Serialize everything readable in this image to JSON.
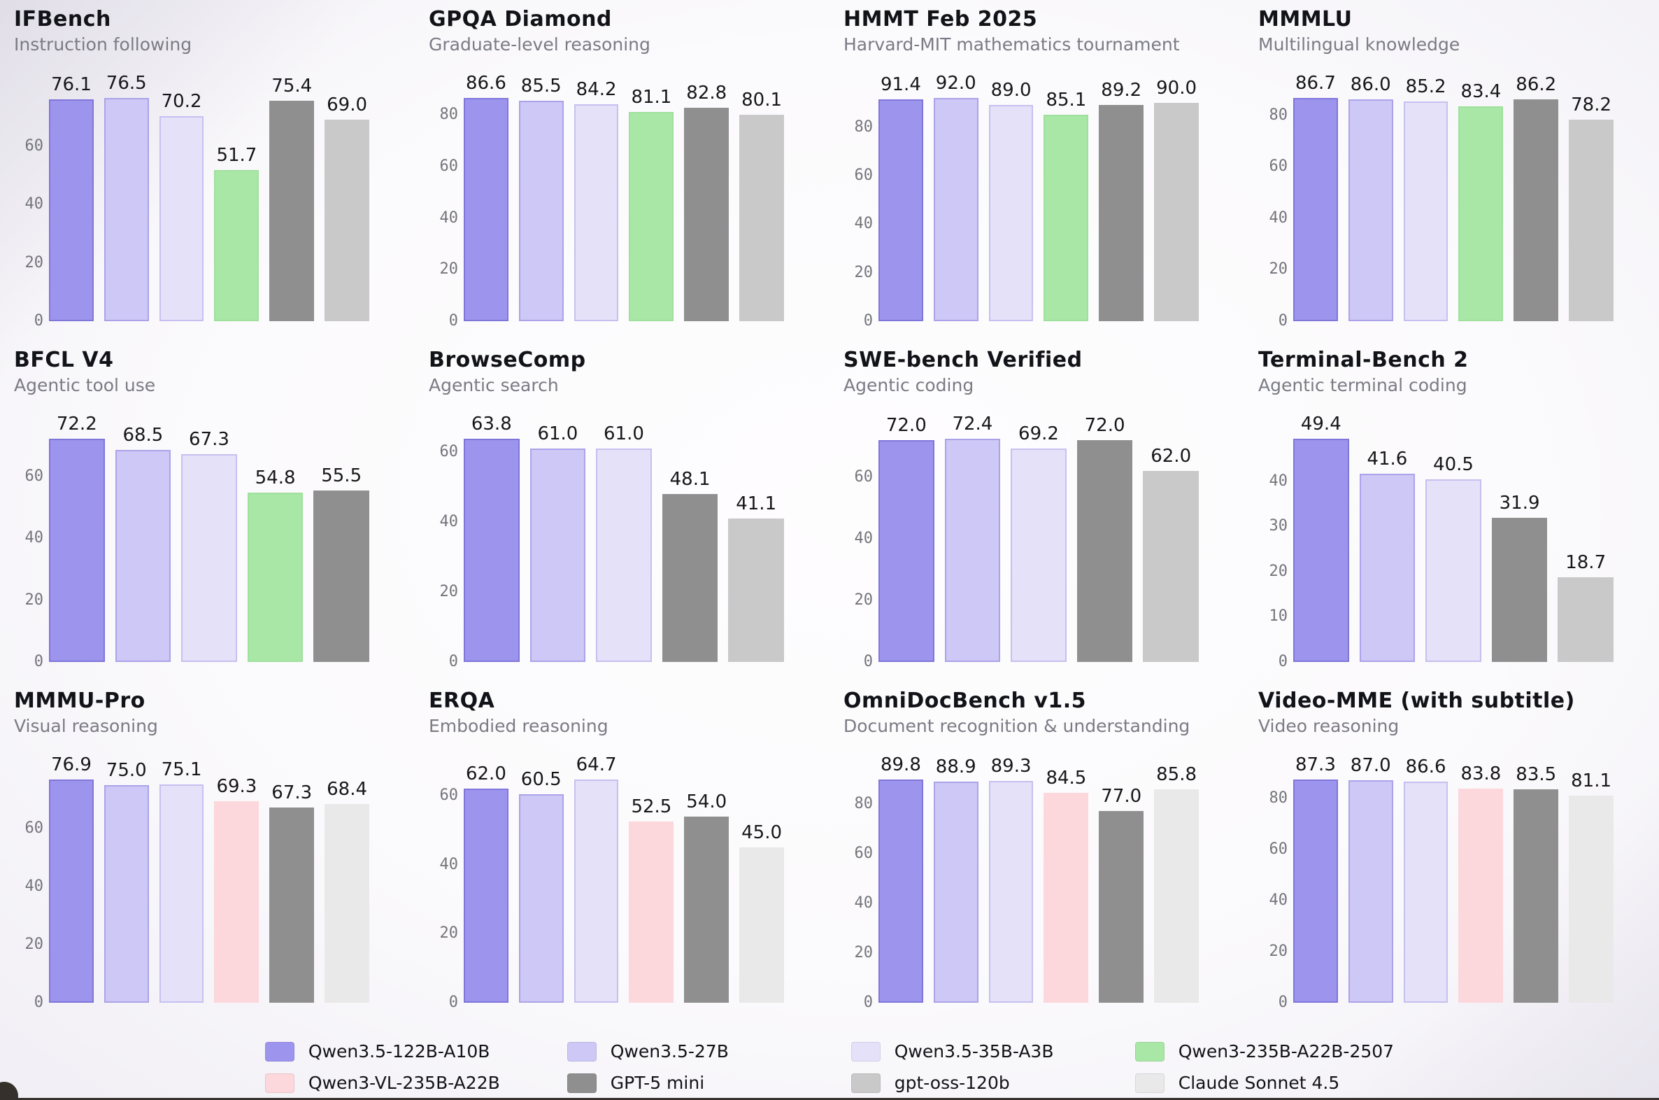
{
  "page": {
    "background": "#faf9fc",
    "bottom_edge_color": "#35302b"
  },
  "models": [
    {
      "name": "Qwen3.5-122B-A10B",
      "fill": "#9d95ed",
      "edge": "#7f76da"
    },
    {
      "name": "Qwen3.5-27B",
      "fill": "#cdc8f5",
      "edge": "#aba3e9"
    },
    {
      "name": "Qwen3.5-35B-A3B",
      "fill": "#e4e1f9",
      "edge": "#c6c0f0"
    },
    {
      "name": "Qwen3-235B-A22B-2507",
      "fill": "#a9e7a6",
      "edge": "#a0e09d"
    },
    {
      "name": "Qwen3-VL-235B-A22B",
      "fill": "#fcd7dc",
      "edge": "#fcd7dc"
    },
    {
      "name": "GPT-5 mini",
      "fill": "#8f8f8f",
      "edge": "#8f8f8f"
    },
    {
      "name": "gpt-oss-120b",
      "fill": "#c9c9c9",
      "edge": "#c9c9c9"
    },
    {
      "name": "Claude Sonnet 4.5",
      "fill": "#e9e9e9",
      "edge": "#e9e9e9"
    }
  ],
  "legend": {
    "rows": [
      [
        "Qwen3.5-122B-A10B",
        "Qwen3.5-27B",
        "Qwen3.5-35B-A3B",
        "Qwen3-235B-A22B-2507"
      ],
      [
        "Qwen3-VL-235B-A22B",
        "GPT-5 mini",
        "gpt-oss-120b",
        "Claude Sonnet 4.5"
      ]
    ]
  },
  "chart_data": [
    {
      "type": "bar",
      "title": "IFBench",
      "subtitle": "Instruction following",
      "categories": [
        "Qwen3.5-122B-A10B",
        "Qwen3.5-27B",
        "Qwen3.5-35B-A3B",
        "Qwen3-235B-A22B-2507",
        "GPT-5 mini",
        "gpt-oss-120b"
      ],
      "values": [
        76.1,
        76.5,
        70.2,
        51.7,
        75.4,
        69.0
      ],
      "yticks": [
        0,
        20,
        40,
        60
      ],
      "ylim": [
        0,
        80.3
      ]
    },
    {
      "type": "bar",
      "title": "GPQA Diamond",
      "subtitle": "Graduate-level reasoning",
      "categories": [
        "Qwen3.5-122B-A10B",
        "Qwen3.5-27B",
        "Qwen3.5-35B-A3B",
        "Qwen3-235B-A22B-2507",
        "GPT-5 mini",
        "gpt-oss-120b"
      ],
      "values": [
        86.6,
        85.5,
        84.2,
        81.1,
        82.8,
        80.1
      ],
      "yticks": [
        0,
        20,
        40,
        60,
        80
      ],
      "ylim": [
        0,
        90.9
      ]
    },
    {
      "type": "bar",
      "title": "HMMT Feb 2025",
      "subtitle": "Harvard-MIT mathematics tournament",
      "categories": [
        "Qwen3.5-122B-A10B",
        "Qwen3.5-27B",
        "Qwen3.5-35B-A3B",
        "Qwen3-235B-A22B-2507",
        "GPT-5 mini",
        "gpt-oss-120b"
      ],
      "values": [
        91.4,
        92.0,
        89.0,
        85.1,
        89.2,
        90.0
      ],
      "yticks": [
        0,
        20,
        40,
        60,
        80
      ],
      "ylim": [
        0,
        96.6
      ]
    },
    {
      "type": "bar",
      "title": "MMMLU",
      "subtitle": "Multilingual knowledge",
      "categories": [
        "Qwen3.5-122B-A10B",
        "Qwen3.5-27B",
        "Qwen3.5-35B-A3B",
        "Qwen3-235B-A22B-2507",
        "GPT-5 mini",
        "gpt-oss-120b"
      ],
      "values": [
        86.7,
        86.0,
        85.2,
        83.4,
        86.2,
        78.2
      ],
      "yticks": [
        0,
        20,
        40,
        60,
        80
      ],
      "ylim": [
        0,
        91.0
      ]
    },
    {
      "type": "bar",
      "title": "BFCL V4",
      "subtitle": "Agentic tool use",
      "categories": [
        "Qwen3.5-122B-A10B",
        "Qwen3.5-27B",
        "Qwen3.5-35B-A3B",
        "Qwen3-235B-A22B-2507",
        "GPT-5 mini"
      ],
      "values": [
        72.2,
        68.5,
        67.3,
        54.8,
        55.5
      ],
      "yticks": [
        0,
        20,
        40,
        60
      ],
      "ylim": [
        0,
        75.8
      ]
    },
    {
      "type": "bar",
      "title": "BrowseComp",
      "subtitle": "Agentic search",
      "categories": [
        "Qwen3.5-122B-A10B",
        "Qwen3.5-27B",
        "Qwen3.5-35B-A3B",
        "GPT-5 mini",
        "gpt-oss-120b"
      ],
      "values": [
        63.8,
        61.0,
        61.0,
        48.1,
        41.1
      ],
      "yticks": [
        0,
        20,
        40,
        60
      ],
      "ylim": [
        0,
        67.0
      ]
    },
    {
      "type": "bar",
      "title": "SWE-bench Verified",
      "subtitle": "Agentic coding",
      "categories": [
        "Qwen3.5-122B-A10B",
        "Qwen3.5-27B",
        "Qwen3.5-35B-A3B",
        "GPT-5 mini",
        "gpt-oss-120b"
      ],
      "values": [
        72.0,
        72.4,
        69.2,
        72.0,
        62.0
      ],
      "yticks": [
        0,
        20,
        40,
        60
      ],
      "ylim": [
        0,
        76.0
      ]
    },
    {
      "type": "bar",
      "title": "Terminal-Bench 2",
      "subtitle": "Agentic terminal coding",
      "categories": [
        "Qwen3.5-122B-A10B",
        "Qwen3.5-27B",
        "Qwen3.5-35B-A3B",
        "GPT-5 mini",
        "gpt-oss-120b"
      ],
      "values": [
        49.4,
        41.6,
        40.5,
        31.9,
        18.7
      ],
      "yticks": [
        0,
        10,
        20,
        30,
        40
      ],
      "ylim": [
        0,
        51.9
      ]
    },
    {
      "type": "bar",
      "title": "MMMU-Pro",
      "subtitle": "Visual reasoning",
      "categories": [
        "Qwen3.5-122B-A10B",
        "Qwen3.5-27B",
        "Qwen3.5-35B-A3B",
        "Qwen3-VL-235B-A22B",
        "GPT-5 mini",
        "Claude Sonnet 4.5"
      ],
      "values": [
        76.9,
        75.0,
        75.1,
        69.3,
        67.3,
        68.4
      ],
      "yticks": [
        0,
        20,
        40,
        60
      ],
      "ylim": [
        0,
        80.7
      ]
    },
    {
      "type": "bar",
      "title": "ERQA",
      "subtitle": "Embodied reasoning",
      "categories": [
        "Qwen3.5-122B-A10B",
        "Qwen3.5-27B",
        "Qwen3.5-35B-A3B",
        "Qwen3-VL-235B-A22B",
        "GPT-5 mini",
        "Claude Sonnet 4.5"
      ],
      "values": [
        62.0,
        60.5,
        64.7,
        52.5,
        54.0,
        45.0
      ],
      "yticks": [
        0,
        20,
        40,
        60
      ],
      "ylim": [
        0,
        67.9
      ]
    },
    {
      "type": "bar",
      "title": "OmniDocBench v1.5",
      "subtitle": "Document recognition & understanding",
      "categories": [
        "Qwen3.5-122B-A10B",
        "Qwen3.5-27B",
        "Qwen3.5-35B-A3B",
        "Qwen3-VL-235B-A22B",
        "GPT-5 mini",
        "Claude Sonnet 4.5"
      ],
      "values": [
        89.8,
        88.9,
        89.3,
        84.5,
        77.0,
        85.8
      ],
      "yticks": [
        0,
        20,
        40,
        60,
        80
      ],
      "ylim": [
        0,
        94.3
      ]
    },
    {
      "type": "bar",
      "title": "Video-MME (with subtitle)",
      "subtitle": "Video reasoning",
      "categories": [
        "Qwen3.5-122B-A10B",
        "Qwen3.5-27B",
        "Qwen3.5-35B-A3B",
        "Qwen3-VL-235B-A22B",
        "GPT-5 mini",
        "Claude Sonnet 4.5"
      ],
      "values": [
        87.3,
        87.0,
        86.6,
        83.8,
        83.5,
        81.1
      ],
      "yticks": [
        0,
        20,
        40,
        60,
        80
      ],
      "ylim": [
        0,
        91.7
      ]
    }
  ]
}
